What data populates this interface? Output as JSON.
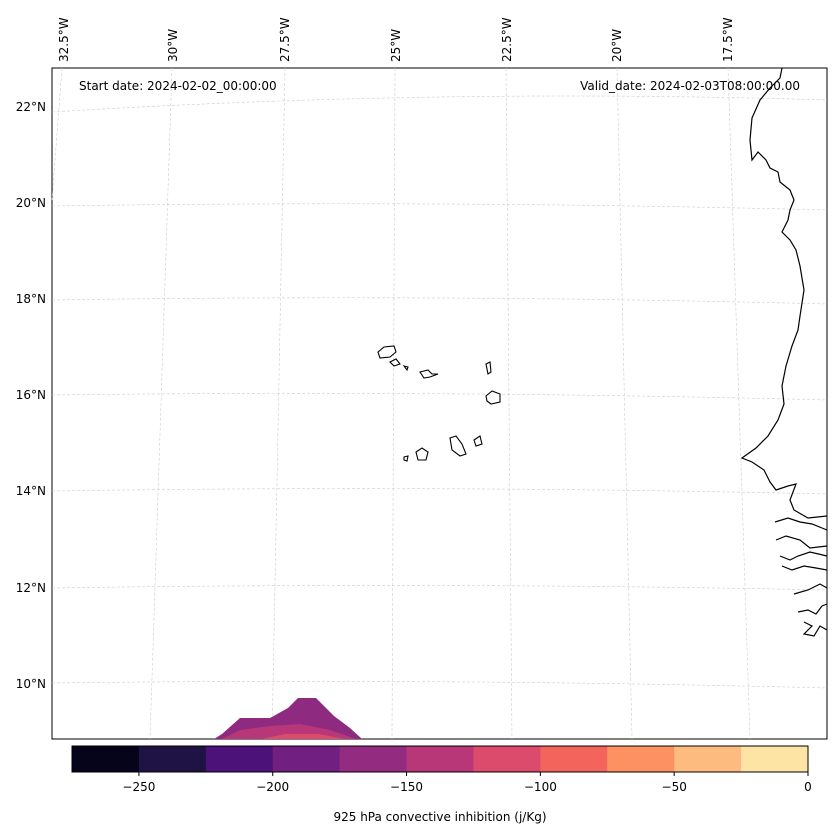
{
  "header": {
    "start_date": "Start date: 2024-02-02_00:00:00",
    "valid_date": "Valid_date: 2024-02-03T08:00:00.00"
  },
  "axes": {
    "lon_labels": [
      "32.5°W",
      "30°W",
      "27.5°W",
      "25°W",
      "22.5°W",
      "20°W",
      "17.5°W"
    ],
    "lat_labels": [
      "22°N",
      "20°N",
      "18°N",
      "16°N",
      "14°N",
      "12°N",
      "10°N"
    ]
  },
  "colorbar": {
    "label": "925 hPa convective inhibition (j/Kg)",
    "tick_labels": [
      "−250",
      "−200",
      "−150",
      "−100",
      "−50",
      "0"
    ],
    "colors": [
      "#05041a",
      "#1f1245",
      "#4d1279",
      "#711f81",
      "#932b80",
      "#b73779",
      "#dc4a6c",
      "#f3655c",
      "#fd9161",
      "#febb80",
      "#fde4a4"
    ]
  },
  "chart_data": {
    "type": "heatmap",
    "title": "925 hPa convective inhibition (j/Kg)",
    "subtitle_left": "Start date: 2024-02-02_00:00:00",
    "subtitle_right": "Valid_date: 2024-02-03T08:00:00.00",
    "lon_ticks": [
      -32.5,
      -30,
      -27.5,
      -25,
      -22.5,
      -20,
      -17.5
    ],
    "lat_ticks": [
      22,
      20,
      18,
      16,
      14,
      12,
      10
    ],
    "lon_range": [
      -33,
      -16
    ],
    "lat_range": [
      8.9,
      22.7
    ],
    "color_levels": [
      -275,
      -250,
      -225,
      -200,
      -175,
      -150,
      -125,
      -100,
      -75,
      -50,
      -25,
      0
    ],
    "colorbar_ticks": [
      -250,
      -200,
      -150,
      -100,
      -50,
      0
    ],
    "colormap": "magma",
    "features": "Cabo Verde islands and West African coastline; small CIN region near 27°W, 9°N"
  }
}
